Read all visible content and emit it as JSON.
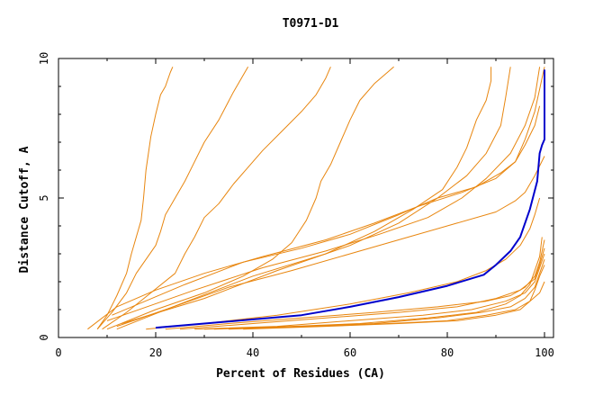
{
  "chart_data": {
    "type": "line",
    "title": "T0971-D1",
    "xlabel": "Percent of Residues (CA)",
    "ylabel": "Distance Cutoff, A",
    "xlim": [
      0,
      100
    ],
    "ylim": [
      0,
      10
    ],
    "x_ticks": [
      0,
      20,
      40,
      60,
      80,
      100
    ],
    "y_ticks": [
      0,
      5,
      10
    ],
    "grid": false,
    "legend": "none",
    "colors": {
      "background": "#ffffff",
      "orange": "#e8860f",
      "blue": "#0000cc",
      "axis": "#000000"
    },
    "series": [
      {
        "color": "#e8860f",
        "points": [
          [
            8,
            0.3
          ],
          [
            10,
            0.8
          ],
          [
            12,
            1.5
          ],
          [
            14,
            2.3
          ],
          [
            15,
            3.0
          ],
          [
            16,
            3.6
          ],
          [
            17,
            4.2
          ],
          [
            17.5,
            5.0
          ],
          [
            18,
            6.0
          ],
          [
            18.5,
            6.6
          ],
          [
            19,
            7.2
          ],
          [
            20,
            8.0
          ],
          [
            21,
            8.7
          ],
          [
            22,
            9.0
          ],
          [
            23,
            9.5
          ],
          [
            23.5,
            9.7
          ]
        ]
      },
      {
        "color": "#e8860f",
        "points": [
          [
            8,
            0.3
          ],
          [
            11,
            0.9
          ],
          [
            14,
            1.6
          ],
          [
            16,
            2.3
          ],
          [
            18,
            2.8
          ],
          [
            20,
            3.3
          ],
          [
            21,
            3.8
          ],
          [
            22,
            4.4
          ],
          [
            24,
            5.0
          ],
          [
            26,
            5.6
          ],
          [
            28,
            6.3
          ],
          [
            30,
            7.0
          ],
          [
            33,
            7.8
          ],
          [
            36,
            8.8
          ],
          [
            39,
            9.7
          ]
        ]
      },
      {
        "color": "#e8860f",
        "points": [
          [
            9,
            0.3
          ],
          [
            14,
            0.9
          ],
          [
            19,
            1.6
          ],
          [
            24,
            2.3
          ],
          [
            26,
            3.0
          ],
          [
            28,
            3.6
          ],
          [
            30,
            4.3
          ],
          [
            33,
            4.8
          ],
          [
            36,
            5.5
          ],
          [
            39,
            6.1
          ],
          [
            42,
            6.7
          ],
          [
            46,
            7.4
          ],
          [
            50,
            8.1
          ],
          [
            53,
            8.7
          ],
          [
            55,
            9.3
          ],
          [
            56,
            9.7
          ]
        ]
      },
      {
        "color": "#e8860f",
        "points": [
          [
            10,
            0.3
          ],
          [
            20,
            1.0
          ],
          [
            30,
            1.6
          ],
          [
            38,
            2.2
          ],
          [
            44,
            2.8
          ],
          [
            48,
            3.4
          ],
          [
            51,
            4.2
          ],
          [
            53,
            5.0
          ],
          [
            54,
            5.6
          ],
          [
            56,
            6.2
          ],
          [
            58,
            7.0
          ],
          [
            60,
            7.8
          ],
          [
            62,
            8.5
          ],
          [
            65,
            9.1
          ],
          [
            69,
            9.7
          ]
        ]
      },
      {
        "color": "#e8860f",
        "points": [
          [
            12,
            0.3
          ],
          [
            25,
            1.2
          ],
          [
            40,
            2.2
          ],
          [
            55,
            3.0
          ],
          [
            65,
            3.8
          ],
          [
            73,
            4.6
          ],
          [
            79,
            5.3
          ],
          [
            82,
            6.1
          ],
          [
            84,
            6.8
          ],
          [
            86,
            7.8
          ],
          [
            88,
            8.5
          ],
          [
            89,
            9.2
          ],
          [
            89,
            9.7
          ]
        ]
      },
      {
        "color": "#e8860f",
        "points": [
          [
            13,
            0.5
          ],
          [
            30,
            1.4
          ],
          [
            45,
            2.4
          ],
          [
            60,
            3.3
          ],
          [
            70,
            4.1
          ],
          [
            78,
            5.0
          ],
          [
            84,
            5.8
          ],
          [
            88,
            6.6
          ],
          [
            91,
            7.6
          ],
          [
            92,
            8.6
          ],
          [
            93,
            9.7
          ]
        ]
      },
      {
        "color": "#e8860f",
        "points": [
          [
            10,
            0.6
          ],
          [
            28,
            1.7
          ],
          [
            42,
            2.5
          ],
          [
            55,
            3.1
          ],
          [
            66,
            3.7
          ],
          [
            76,
            4.3
          ],
          [
            83,
            5.0
          ],
          [
            88,
            5.7
          ],
          [
            93,
            6.6
          ],
          [
            96,
            7.6
          ],
          [
            98,
            8.6
          ],
          [
            99,
            9.7
          ]
        ]
      },
      {
        "color": "#e8860f",
        "points": [
          [
            11,
            0.8
          ],
          [
            26,
            1.9
          ],
          [
            38,
            2.7
          ],
          [
            50,
            3.2
          ],
          [
            60,
            3.7
          ],
          [
            70,
            4.4
          ],
          [
            78,
            5.0
          ],
          [
            86,
            5.4
          ],
          [
            91,
            5.9
          ],
          [
            94,
            6.3
          ],
          [
            96,
            7.1
          ],
          [
            98,
            8.1
          ],
          [
            100,
            9.7
          ]
        ]
      },
      {
        "color": "#e8860f",
        "points": [
          [
            6,
            0.3
          ],
          [
            12,
            1.1
          ],
          [
            20,
            1.7
          ],
          [
            30,
            2.3
          ],
          [
            42,
            2.9
          ],
          [
            55,
            3.5
          ],
          [
            65,
            4.1
          ],
          [
            74,
            4.7
          ],
          [
            83,
            5.2
          ],
          [
            90,
            5.7
          ],
          [
            94,
            6.3
          ],
          [
            96,
            6.9
          ],
          [
            98,
            7.6
          ],
          [
            99,
            8.3
          ]
        ]
      },
      {
        "color": "#e8860f",
        "points": [
          [
            12,
            0.4
          ],
          [
            22,
            1.0
          ],
          [
            35,
            1.8
          ],
          [
            48,
            2.4
          ],
          [
            60,
            3.0
          ],
          [
            72,
            3.6
          ],
          [
            82,
            4.1
          ],
          [
            90,
            4.5
          ],
          [
            94,
            4.9
          ],
          [
            96,
            5.2
          ],
          [
            98,
            5.8
          ],
          [
            100,
            6.5
          ]
        ]
      },
      {
        "color": "#e8860f",
        "points": [
          [
            18,
            0.3
          ],
          [
            30,
            0.5
          ],
          [
            45,
            0.8
          ],
          [
            60,
            1.2
          ],
          [
            72,
            1.6
          ],
          [
            82,
            2.0
          ],
          [
            88,
            2.4
          ],
          [
            92,
            2.8
          ],
          [
            95,
            3.3
          ],
          [
            97,
            3.9
          ],
          [
            98,
            4.4
          ],
          [
            99,
            5.0
          ]
        ]
      },
      {
        "color": "#e8860f",
        "points": [
          [
            22,
            0.3
          ],
          [
            35,
            0.5
          ],
          [
            50,
            0.7
          ],
          [
            65,
            0.9
          ],
          [
            78,
            1.1
          ],
          [
            88,
            1.3
          ],
          [
            93,
            1.5
          ],
          [
            96,
            1.8
          ],
          [
            98,
            2.2
          ],
          [
            99,
            2.7
          ],
          [
            100,
            3.5
          ]
        ]
      },
      {
        "color": "#e8860f",
        "points": [
          [
            25,
            0.3
          ],
          [
            40,
            0.5
          ],
          [
            55,
            0.7
          ],
          [
            70,
            0.9
          ],
          [
            82,
            1.1
          ],
          [
            90,
            1.4
          ],
          [
            95,
            1.7
          ],
          [
            98,
            2.1
          ],
          [
            99,
            2.6
          ],
          [
            100,
            3.2
          ]
        ]
      },
      {
        "color": "#e8860f",
        "points": [
          [
            28,
            0.3
          ],
          [
            45,
            0.4
          ],
          [
            60,
            0.6
          ],
          [
            75,
            0.8
          ],
          [
            85,
            1.0
          ],
          [
            92,
            1.3
          ],
          [
            96,
            1.6
          ],
          [
            98,
            2.0
          ],
          [
            99,
            2.5
          ],
          [
            100,
            3.0
          ]
        ]
      },
      {
        "color": "#e8860f",
        "points": [
          [
            30,
            0.3
          ],
          [
            48,
            0.4
          ],
          [
            62,
            0.5
          ],
          [
            76,
            0.7
          ],
          [
            86,
            0.9
          ],
          [
            92,
            1.2
          ],
          [
            95,
            1.5
          ],
          [
            97,
            1.9
          ],
          [
            98,
            2.4
          ],
          [
            99,
            2.9
          ],
          [
            99.5,
            3.6
          ]
        ]
      },
      {
        "color": "#e8860f",
        "points": [
          [
            32,
            0.3
          ],
          [
            50,
            0.4
          ],
          [
            65,
            0.5
          ],
          [
            78,
            0.7
          ],
          [
            87,
            0.9
          ],
          [
            93,
            1.1
          ],
          [
            96,
            1.4
          ],
          [
            98,
            1.8
          ],
          [
            99,
            2.3
          ],
          [
            100,
            2.8
          ]
        ]
      },
      {
        "color": "#e8860f",
        "points": [
          [
            35,
            0.3
          ],
          [
            52,
            0.4
          ],
          [
            68,
            0.5
          ],
          [
            80,
            0.6
          ],
          [
            88,
            0.8
          ],
          [
            94,
            1.0
          ],
          [
            97,
            1.3
          ],
          [
            98,
            1.7
          ],
          [
            99,
            2.2
          ],
          [
            100,
            2.6
          ]
        ]
      },
      {
        "color": "#e8860f",
        "points": [
          [
            38,
            0.3
          ],
          [
            55,
            0.4
          ],
          [
            70,
            0.5
          ],
          [
            82,
            0.6
          ],
          [
            90,
            0.8
          ],
          [
            95,
            1.0
          ],
          [
            97,
            1.3
          ],
          [
            99,
            1.6
          ],
          [
            100,
            2.0
          ]
        ]
      },
      {
        "color": "#0000cc",
        "points": [
          [
            20,
            0.35
          ],
          [
            30,
            0.5
          ],
          [
            40,
            0.65
          ],
          [
            50,
            0.8
          ],
          [
            60,
            1.1
          ],
          [
            70,
            1.45
          ],
          [
            80,
            1.85
          ],
          [
            87.5,
            2.25
          ],
          [
            90,
            2.6
          ],
          [
            93,
            3.1
          ],
          [
            95,
            3.6
          ],
          [
            97,
            4.6
          ],
          [
            98.5,
            5.6
          ],
          [
            99,
            6.6
          ],
          [
            99.5,
            6.9
          ],
          [
            100,
            7.1
          ],
          [
            100,
            9.6
          ]
        ]
      }
    ]
  }
}
